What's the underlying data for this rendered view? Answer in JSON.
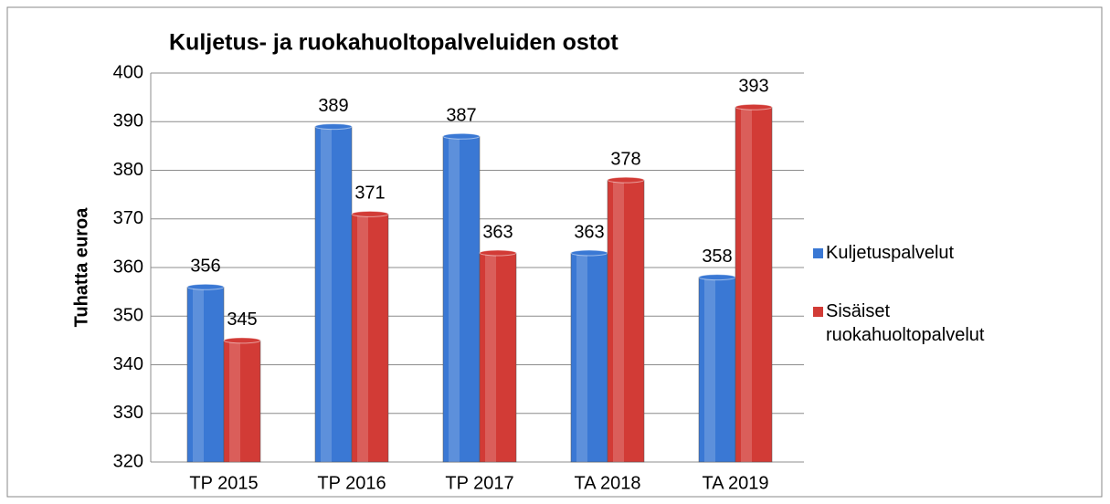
{
  "chart_data": {
    "type": "bar",
    "title": "Kuljetus- ja ruokahuoltopalveluiden ostot",
    "ylabel": "Tuhatta euroa",
    "categories": [
      "TP 2015",
      "TP 2016",
      "TP 2017",
      "TA 2018",
      "TA 2019"
    ],
    "series": [
      {
        "name": "Kuljetuspalvelut",
        "color": "#3a78d4",
        "values": [
          356,
          389,
          387,
          363,
          358
        ]
      },
      {
        "name": "Sisäiset ruokahuoltopalvelut",
        "color": "#d23b36",
        "values": [
          345,
          371,
          363,
          378,
          393
        ]
      }
    ],
    "ylim": [
      320,
      400
    ],
    "yticks": [
      320,
      330,
      340,
      350,
      360,
      370,
      380,
      390,
      400
    ],
    "grid": true,
    "legend": "right"
  }
}
